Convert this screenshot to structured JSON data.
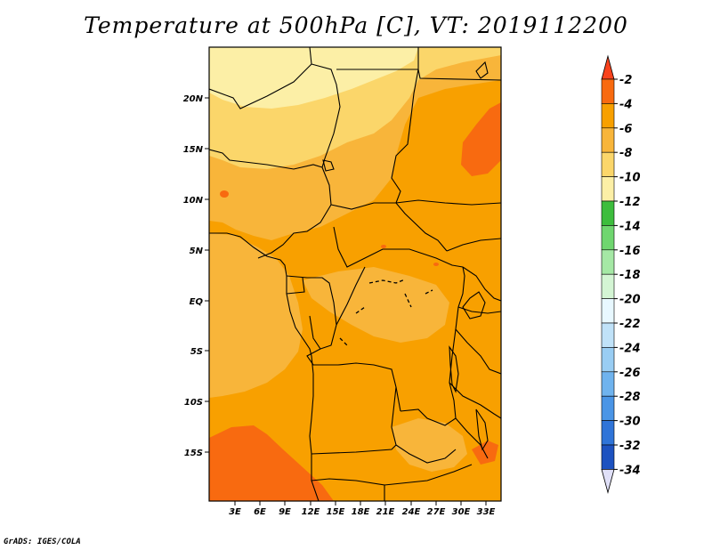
{
  "title": "Temperature at 500hPa [C], VT: 2019112200",
  "credit": "GrADS: IGES/COLA",
  "map": {
    "variable": "Temperature at 500hPa",
    "units": "C",
    "valid_time": "2019112200",
    "lat_ticks": [
      "20N",
      "15N",
      "10N",
      "5N",
      "EQ",
      "5S",
      "10S",
      "15S"
    ],
    "lon_ticks": [
      "3E",
      "6E",
      "9E",
      "12E",
      "15E",
      "18E",
      "21E",
      "24E",
      "27E",
      "30E",
      "33E"
    ],
    "fill_colors": {
      "-4_to_-2": "#f86a10",
      "-6_to_-4": "#f8a000",
      "-8_to_-6": "#f8b53a",
      "-10_to_-8": "#fbd66a",
      "-12_to_-10": "#fcefa6"
    }
  },
  "colorbar": {
    "labels": [
      "-2",
      "-4",
      "-6",
      "-8",
      "-10",
      "-12",
      "-14",
      "-16",
      "-18",
      "-20",
      "-22",
      "-24",
      "-26",
      "-28",
      "-30",
      "-32",
      "-34"
    ],
    "colors": [
      "#f86a10",
      "#f8a000",
      "#f8b53a",
      "#fbd66a",
      "#fcefa6",
      "#3dbd3d",
      "#6fd66f",
      "#a5e8a5",
      "#d4f5d4",
      "#e8f8ff",
      "#c0e2f8",
      "#99cdf3",
      "#6fb3ee",
      "#4a95e6",
      "#2f74d8",
      "#1d52c0",
      "#0c2a96",
      "#08105c"
    ],
    "top_arrow_color": "#f8421c",
    "bottom_arrow_color": "#e0e0f8"
  }
}
